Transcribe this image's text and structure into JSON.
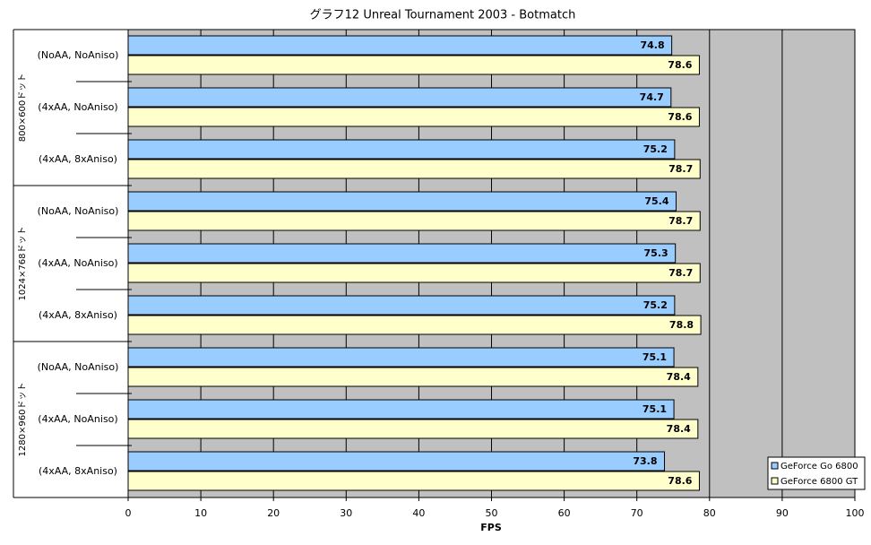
{
  "chart_data": {
    "type": "hbar",
    "title": "グラフ12  Unreal Tournament 2003 - Botmatch",
    "categories": [
      "(NoAA, NoAniso)",
      "(4xAA, NoAniso)",
      "(4xAA, 8xAniso)",
      "(NoAA, NoAniso)",
      "(4xAA, NoAniso)",
      "(4xAA, 8xAniso)",
      "(NoAA, NoAniso)",
      "(4xAA, NoAniso)",
      "(4xAA, 8xAniso)"
    ],
    "groups": [
      "800×600ドット",
      "1024×768ドット",
      "1280×960ドット"
    ],
    "series": [
      {
        "name": "GeForce Go 6800",
        "color": "#99ccff",
        "values": [
          74.8,
          74.7,
          75.2,
          75.4,
          75.3,
          75.2,
          75.1,
          75.1,
          73.8
        ]
      },
      {
        "name": "GeForce 6800 GT",
        "color": "#ffffcc",
        "values": [
          78.6,
          78.6,
          78.7,
          78.7,
          78.7,
          78.8,
          78.4,
          78.4,
          78.6
        ]
      }
    ],
    "xlabel": "FPS",
    "xlim": [
      0,
      100
    ],
    "xticks": [
      0,
      10,
      20,
      30,
      40,
      50,
      60,
      70,
      80,
      90,
      100
    ],
    "grid": true,
    "plot_background": "#c0c0c0",
    "legend": "bottom-right"
  }
}
